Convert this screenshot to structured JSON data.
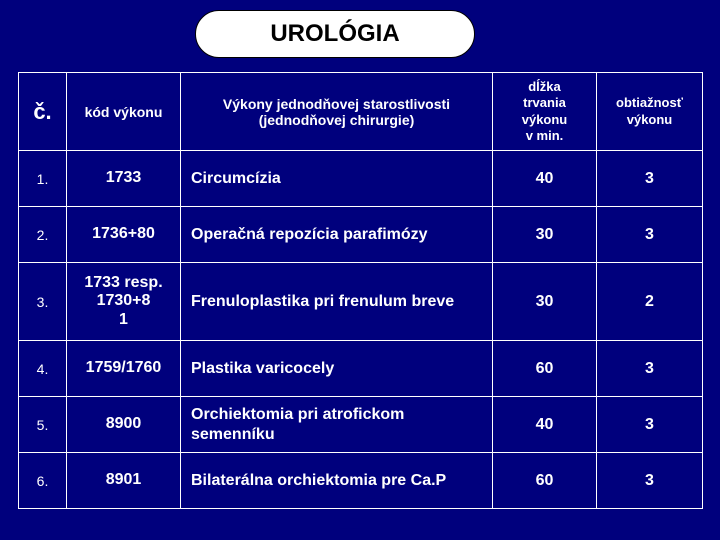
{
  "title": "UROLÓGIA",
  "colors": {
    "background": "#00007d",
    "pill_bg": "#ffffff",
    "text_light": "#ffffff",
    "text_dark": "#000000",
    "border": "#ffffff"
  },
  "table": {
    "columns": {
      "num": "č.",
      "code": "kód výkonu",
      "desc": "Výkony jednodňovej starostlivosti\n(jednodňovej chirurgie)",
      "dur": "dĺžka\ntrvania\nvýkonu\nv min.",
      "diff": "obtiažnosť\nvýkonu"
    },
    "rows": [
      {
        "num": "1.",
        "code": "1733",
        "desc": "Circumcízia",
        "dur": "40",
        "diff": "3",
        "tall": false
      },
      {
        "num": "2.",
        "code": "1736+80",
        "desc": "Operačná repozícia parafimózy",
        "dur": "30",
        "diff": "3",
        "tall": false
      },
      {
        "num": "3.",
        "code": "1733 resp.\n1730+8\n1",
        "desc": "Frenuloplastika pri frenulum breve",
        "dur": "30",
        "diff": "2",
        "tall": true
      },
      {
        "num": "4.",
        "code": "1759/1760",
        "desc": "Plastika  varicocely",
        "dur": "60",
        "diff": "3",
        "tall": false
      },
      {
        "num": "5.",
        "code": "8900",
        "desc": "Orchiektomia pri atrofickom\nsemenníku",
        "dur": "40",
        "diff": "3",
        "tall": false
      },
      {
        "num": "6.",
        "code": "8901",
        "desc": "Bilaterálna orchiektomia pre Ca.P",
        "dur": "60",
        "diff": "3",
        "tall": false
      }
    ]
  }
}
